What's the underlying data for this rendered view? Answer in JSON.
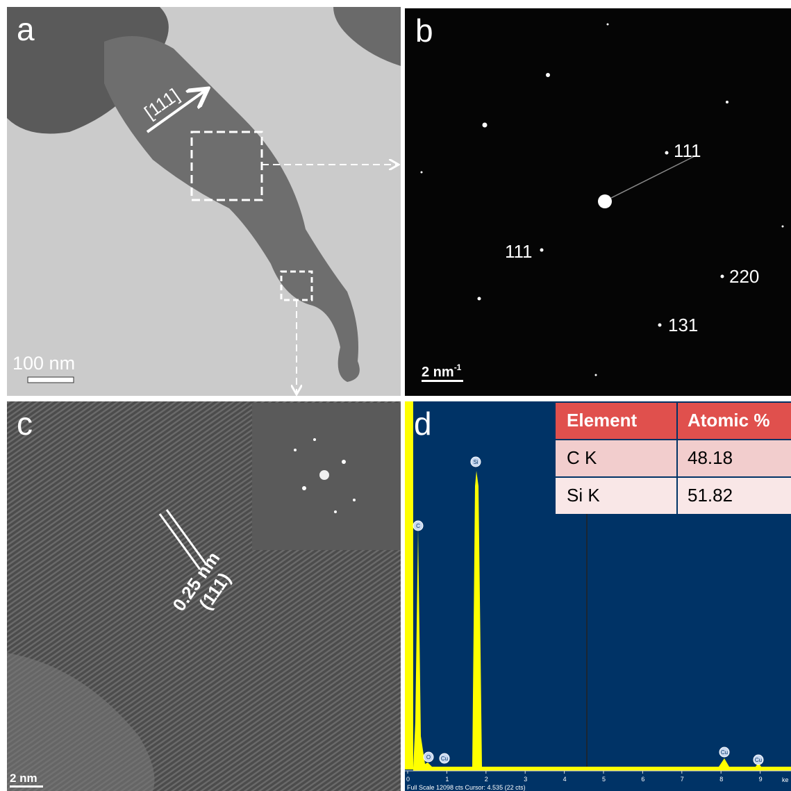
{
  "panel_a": {
    "label": "a",
    "direction": "[111]",
    "scale_bar": "100 nm"
  },
  "panel_b": {
    "label": "b",
    "spots": [
      "111",
      "111",
      "220",
      "131"
    ],
    "scale_bar": "2 nm",
    "scale_bar_exponent": "-1"
  },
  "panel_c": {
    "label": "c",
    "spacing": "0.25 nm",
    "plane": "(111)",
    "scale_bar": "2 nm"
  },
  "panel_d": {
    "label": "d",
    "table": {
      "header": [
        "Element",
        "Atomic %"
      ],
      "rows": [
        [
          "C K",
          48.18
        ],
        [
          "Si K",
          51.82
        ]
      ]
    },
    "peak_labels": [
      "Si",
      "C",
      "O",
      "Cu",
      "Cu",
      "Cu"
    ],
    "x_ticks": [
      0,
      1,
      2,
      3,
      4,
      5,
      6,
      7,
      8,
      9
    ],
    "x_unit": "ke",
    "footer": "Full Scale 12098 cts Cursor: 4.535 (22 cts)"
  }
}
